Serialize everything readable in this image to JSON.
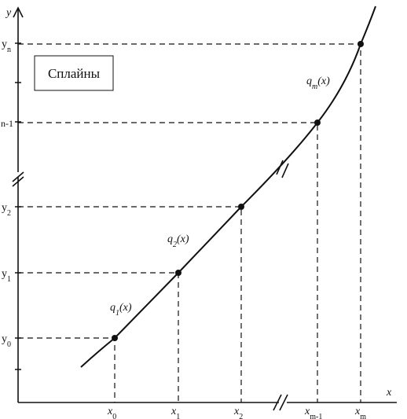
{
  "title_box": "Сплайны",
  "axes": {
    "y": "y",
    "x": "x"
  },
  "y_labels": [
    {
      "main": "y",
      "sub": "0"
    },
    {
      "main": "y",
      "sub": "1"
    },
    {
      "main": "y",
      "sub": "2"
    },
    {
      "main": "n-1"
    },
    {
      "main": "y",
      "sub": "n"
    }
  ],
  "x_labels": [
    {
      "main": "x",
      "sub": "0"
    },
    {
      "main": "x",
      "sub": "1"
    },
    {
      "main": "x",
      "sub": "2"
    },
    {
      "main": "x",
      "sub": "m-1"
    },
    {
      "main": "x",
      "sub": "m"
    }
  ],
  "curve_labels": [
    {
      "main": "q",
      "sub": "1",
      "tail": "(x)"
    },
    {
      "main": "q",
      "sub": "2",
      "tail": "(x)"
    },
    {
      "main": "q",
      "sub": "m",
      "tail": "(x)"
    }
  ]
}
